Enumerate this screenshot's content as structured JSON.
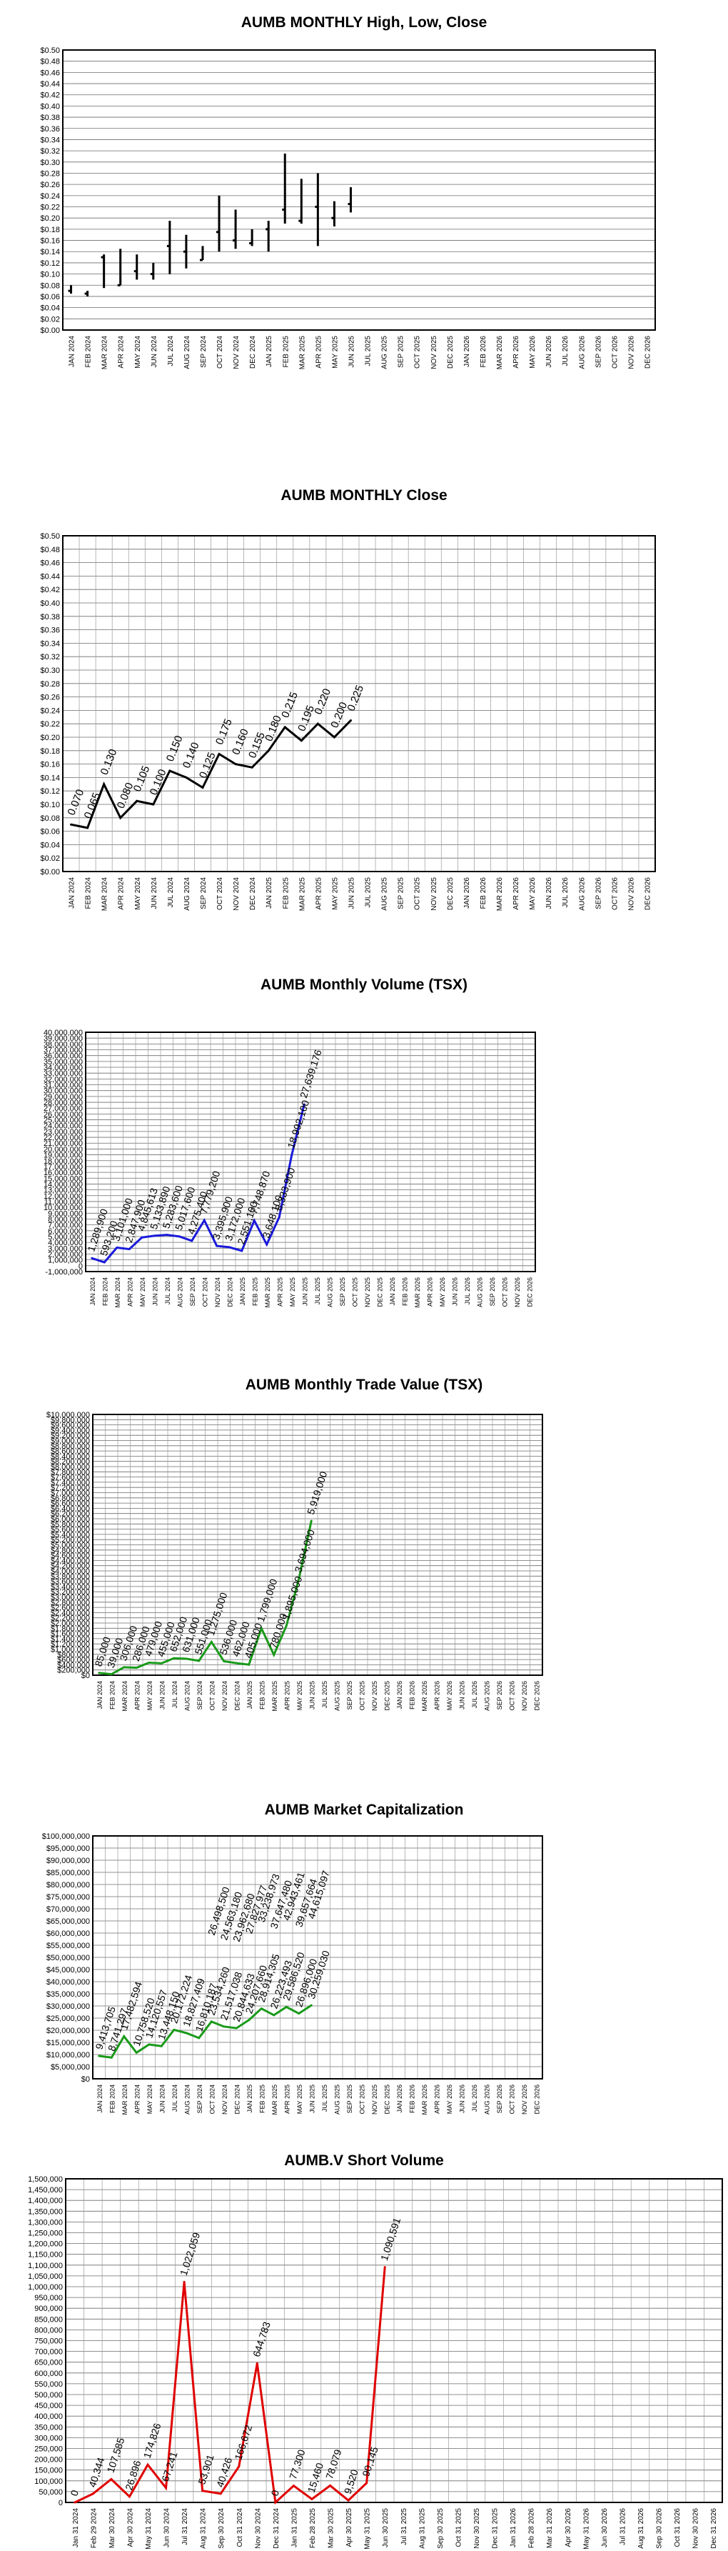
{
  "months": [
    "JAN 2024",
    "FEB 2024",
    "MAR 2024",
    "APR 2024",
    "MAY 2024",
    "JUN 2024",
    "JUL 2024",
    "AUG 2024",
    "SEP 2024",
    "OCT 2024",
    "NOV 2024",
    "DEC 2024",
    "JAN 2025",
    "FEB 2025",
    "MAR 2025",
    "APR 2025",
    "MAY 2025",
    "JUN 2025",
    "JUL 2025",
    "AUG 2025",
    "SEP 2025",
    "OCT 2025",
    "NOV 2025",
    "DEC 2025",
    "JAN 2026",
    "FEB 2026",
    "MAR 2026",
    "APR 2026",
    "MAY 2026",
    "JUN 2026",
    "JUL 2026",
    "AUG 2026",
    "SEP 2026",
    "OCT 2026",
    "NOV 2026",
    "DEC 2026"
  ],
  "month_dates": [
    "Jan 31 2024",
    "Feb 29 2024",
    "Mar 30 2024",
    "Apr 30 2024",
    "May 31 2024",
    "Jun 30 2024",
    "Jul 31 2024",
    "Aug 31 2024",
    "Sep 30 2024",
    "Oct 31 2024",
    "Nov 30 2024",
    "Dec 31 2024",
    "Jan 31 2025",
    "Feb 28 2025",
    "Mar 30 2025",
    "Apr 30 2025",
    "May 31 2025",
    "Jun 30 2025",
    "Jul 31 2025",
    "Aug 31 2025",
    "Sep 30 2025",
    "Oct 31 2025",
    "Nov 30 2025",
    "Dec 31 2025",
    "Jan 31 2026",
    "Feb 28 2026",
    "Mar 31 2026",
    "Apr 30 2026",
    "May 31 2026",
    "Jun 30 2026",
    "Jul 31 2026",
    "Aug 31 2026",
    "Sep 30 2026",
    "Oct 31 2026",
    "Nov 30 2026",
    "Dec 31 2026"
  ],
  "chart_data": [
    {
      "type": "line",
      "subtype": "high-low-close",
      "title": "AUMB MONTHLY High, Low, Close",
      "ylim": [
        0,
        0.5
      ],
      "ystep": 0.02,
      "ydecimals": 2,
      "yprefix": "$",
      "grid": true,
      "xaxis": "months",
      "color": "#000000",
      "high": [
        0.08,
        0.07,
        0.135,
        0.145,
        0.135,
        0.12,
        0.195,
        0.17,
        0.15,
        0.24,
        0.215,
        0.18,
        0.195,
        0.315,
        0.27,
        0.28,
        0.23,
        0.255
      ],
      "low": [
        0.065,
        0.06,
        0.075,
        0.08,
        0.09,
        0.09,
        0.1,
        0.11,
        0.125,
        0.14,
        0.145,
        0.15,
        0.14,
        0.19,
        0.19,
        0.15,
        0.185,
        0.21
      ],
      "close": [
        0.07,
        0.065,
        0.13,
        0.08,
        0.105,
        0.1,
        0.15,
        0.14,
        0.125,
        0.175,
        0.16,
        0.155,
        0.18,
        0.215,
        0.195,
        0.22,
        0.2,
        0.225
      ]
    },
    {
      "type": "line",
      "title": "AUMB MONTHLY Close",
      "ylim": [
        0,
        0.5
      ],
      "ystep": 0.02,
      "ydecimals": 2,
      "yprefix": "$",
      "grid": true,
      "xaxis": "months",
      "color": "#000000",
      "values": [
        0.07,
        0.065,
        0.13,
        0.08,
        0.105,
        0.1,
        0.15,
        0.14,
        0.125,
        0.175,
        0.16,
        0.155,
        0.18,
        0.215,
        0.195,
        0.22,
        0.2,
        0.225
      ],
      "labels": [
        "0.070",
        "0.065",
        "0.130",
        "0.080",
        "0.105",
        "0.100",
        "0.150",
        "0.140",
        "0.125",
        "0.175",
        "0.160",
        "0.155",
        "0.180",
        "0.215",
        "0.195",
        "0.220",
        "0.200",
        "0.225"
      ]
    },
    {
      "type": "line",
      "title": "AUMB Monthly Volume (TSX)",
      "ylim": [
        -1000000,
        40000000
      ],
      "ystep": 1000000,
      "ydecimals": 0,
      "yprefix": "",
      "grid": true,
      "xaxis": "months",
      "color": "#1a1adb",
      "values": [
        1289900,
        593200,
        3101000,
        2847900,
        4845613,
        5133890,
        5283600,
        5017600,
        4275400,
        7779200,
        3395900,
        3172000,
        2551100,
        7748870,
        3648100,
        8333900,
        18992100,
        27639176
      ],
      "labels": [
        "1,289,900",
        "593,200",
        "3,101,000",
        "2,847,900",
        "4,845,613",
        "5,133,890",
        "5,283,600",
        "5,017,600",
        "4,275,400",
        "7,779,200",
        "3,395,900",
        "3,172,000",
        "2,551,100",
        "7,748,870",
        "3,648,100",
        "8,333,900",
        "18,992,100",
        "27,639,176"
      ]
    },
    {
      "type": "line",
      "title": "AUMB Monthly Trade Value  (TSX)",
      "ylim": [
        0,
        10000000
      ],
      "ystep": 200000,
      "ydecimals": 0,
      "yprefix": "$",
      "grid": true,
      "xaxis": "months",
      "color": "#1a9a1a",
      "values": [
        85000,
        39000,
        306000,
        286000,
        479000,
        455000,
        652000,
        631000,
        551000,
        1275000,
        536000,
        462000,
        405000,
        1799000,
        780000,
        1895000,
        3694000,
        5919000
      ],
      "labels": [
        "85,000",
        "39,000",
        "306,000",
        "286,000",
        "479,000",
        "455,000",
        "652,000",
        "631,000",
        "551,000",
        "1,275,000",
        "536,000",
        "462,000",
        "405,000",
        "1,799,000",
        "780,000",
        "1,895,000",
        "3,694,000",
        "5,919,000"
      ]
    },
    {
      "type": "line",
      "title": "AUMB Market Capitalization",
      "ylim": [
        0,
        100000000
      ],
      "ystep": 5000000,
      "ydecimals": 0,
      "yprefix": "$",
      "grid": true,
      "xaxis": "months",
      "color": "#1a9a1a",
      "values": [
        9413705,
        8741297,
        17482594,
        10758520,
        14120557,
        13448150,
        20172224,
        18827409,
        16810187,
        23534260,
        21517038,
        20844633,
        24207660,
        28914305,
        26223493,
        29586520,
        26896000,
        30259030
      ],
      "labels": [
        "9,413,705",
        "8,741,297",
        "17,482,594",
        "10,758,520",
        "14,120,557",
        "13,448,150",
        "20,172,224",
        "18,827,409",
        "16,810,187",
        "23,534,260",
        "21,517,038",
        "20,844,633",
        "24,207,660",
        "28,914,305",
        "26,223,493",
        "29,586,520",
        "26,896,000",
        "30,259,030"
      ],
      "top_labels": [
        "",
        "",
        "",
        "",
        "",
        "",
        "",
        "",
        "",
        "26,498,500",
        "24,563,180",
        "23,962,680",
        "27,827,977",
        "33,238,973",
        "37,647,480",
        "42,943,461",
        "39,657,664",
        "44,615,097"
      ]
    },
    {
      "type": "line",
      "title": "AUMB.V Short Volume",
      "ylim": [
        0,
        1500000
      ],
      "ystep": 50000,
      "ydecimals": 0,
      "yprefix": "",
      "grid": true,
      "xaxis": "month_dates",
      "color": "#e00000",
      "values": [
        0,
        40344,
        107585,
        26896,
        174826,
        67241,
        1022059,
        53901,
        40426,
        166672,
        644783,
        0,
        77300,
        15460,
        78079,
        9520,
        90145,
        1090591
      ],
      "labels": [
        "0",
        "40,344",
        "107,585",
        "26,896",
        "174,826",
        "67,241",
        "1,022,059",
        "53,901",
        "40,426",
        "166,672",
        "644,783",
        "0",
        "77,300",
        "15,460",
        "78,079",
        "9,520",
        "90,145",
        "1,090,591"
      ]
    }
  ]
}
